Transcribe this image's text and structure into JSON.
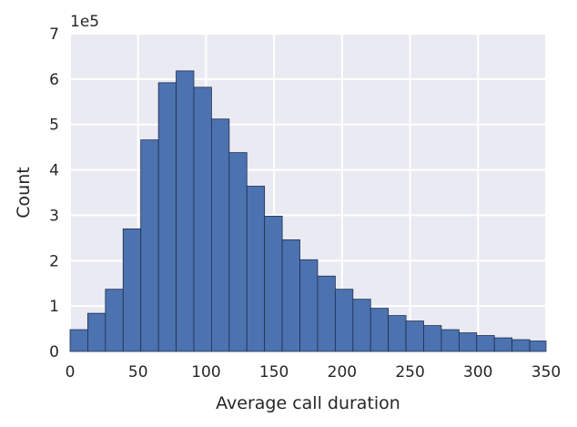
{
  "chart_data": {
    "type": "bar",
    "title": "",
    "xlabel": "Average call duration",
    "ylabel": "Count",
    "y_offset_label": "1e5",
    "xlim": [
      0,
      350
    ],
    "ylim": [
      0,
      7
    ],
    "x_ticks": [
      0,
      50,
      100,
      150,
      200,
      250,
      300,
      350
    ],
    "y_ticks": [
      0,
      1,
      2,
      3,
      4,
      5,
      6,
      7
    ],
    "bin_width": 13,
    "grid": true,
    "legend": "none",
    "bin_edges": [
      0,
      13,
      26,
      39,
      52,
      65,
      78,
      91,
      104,
      117,
      130,
      143,
      156,
      169,
      182,
      195,
      208,
      221,
      234,
      247,
      260,
      273,
      286,
      299,
      312,
      325,
      338
    ],
    "values": [
      0.48,
      0.84,
      1.37,
      2.7,
      4.66,
      5.92,
      6.18,
      5.82,
      5.12,
      4.38,
      3.64,
      2.98,
      2.46,
      2.02,
      1.66,
      1.37,
      1.15,
      0.95,
      0.79,
      0.67,
      0.57,
      0.48,
      0.41,
      0.35,
      0.3,
      0.26,
      0.23
    ],
    "colors": {
      "bar": "#4c72b0",
      "bar_edge": "#1f2f4f",
      "background": "#eaeaf2",
      "grid": "#ffffff",
      "text": "#262626"
    }
  }
}
